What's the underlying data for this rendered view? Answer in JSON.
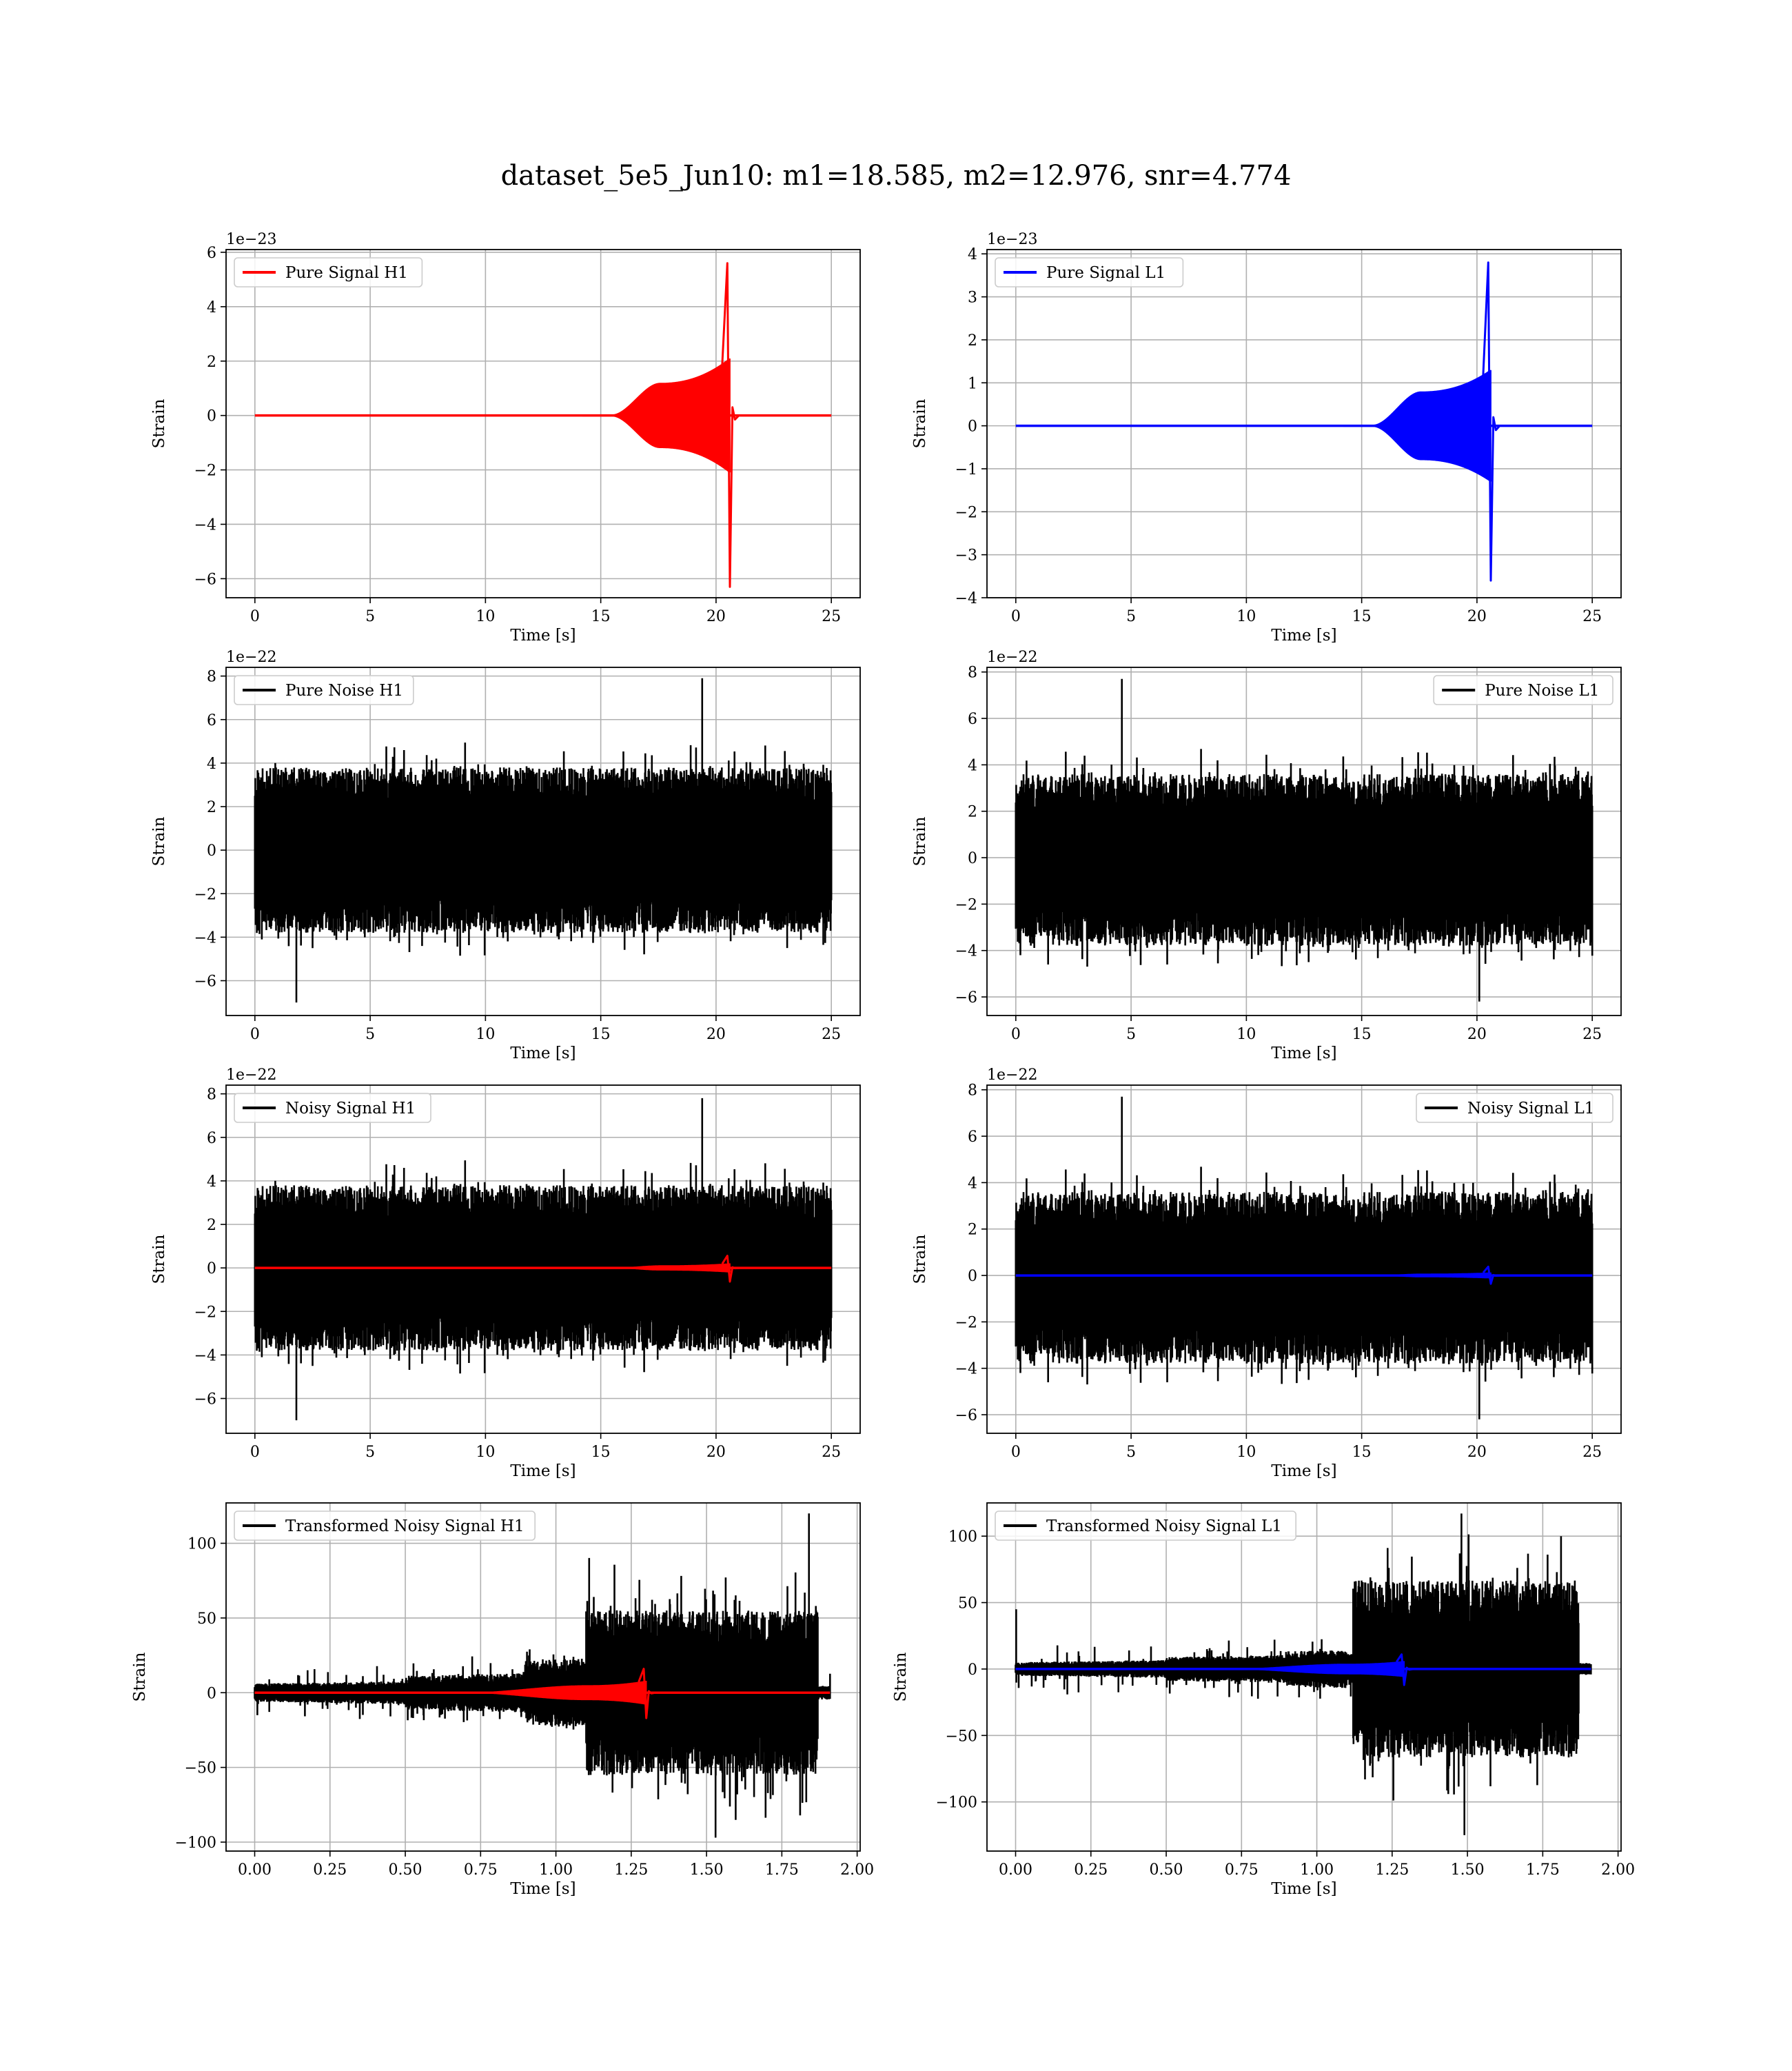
{
  "figure": {
    "title": "dataset_5e5_Jun10: m1=18.585, m2=12.976, snr=4.774",
    "colors": {
      "H1": "#ff0000",
      "L1": "#0000ff",
      "noise": "#000000",
      "grid": "#b0b0b0"
    }
  },
  "chart_data": [
    {
      "type": "line",
      "panel": "pure-signal-h1",
      "legend": [
        "Pure Signal H1"
      ],
      "legend_loc": "upper-left",
      "xlabel": "Time [s]",
      "ylabel": "Strain",
      "offset": "1e−23",
      "xlim": [
        -1.25,
        26.25
      ],
      "ylim": [
        -6.7,
        6.1
      ],
      "xticks": [
        0,
        5,
        10,
        15,
        20,
        25
      ],
      "xtick_labels": [
        "0",
        "5",
        "10",
        "15",
        "20",
        "25"
      ],
      "yticks": [
        -6,
        -4,
        -2,
        0,
        2,
        4,
        6
      ],
      "ytick_labels": [
        "−6",
        "−4",
        "−2",
        "0",
        "2",
        "4",
        "6"
      ],
      "grid": true,
      "series": [
        {
          "kind": "chirp",
          "color": "#ff0000",
          "x_start": 0,
          "x_end": 25,
          "t_onset": 15.5,
          "t_plateau": 17.6,
          "t_merge": 20.6,
          "plateau": 1.2,
          "env_end": 2.1,
          "peak_high": 5.6,
          "peak_low": -6.3,
          "ring": 0.3
        }
      ]
    },
    {
      "type": "line",
      "panel": "pure-signal-l1",
      "legend": [
        "Pure Signal L1"
      ],
      "legend_loc": "upper-left",
      "xlabel": "Time [s]",
      "ylabel": "Strain",
      "offset": "1e−23",
      "xlim": [
        -1.25,
        26.25
      ],
      "ylim": [
        -4.0,
        4.1
      ],
      "xticks": [
        0,
        5,
        10,
        15,
        20,
        25
      ],
      "xtick_labels": [
        "0",
        "5",
        "10",
        "15",
        "20",
        "25"
      ],
      "yticks": [
        -4,
        -3,
        -2,
        -1,
        0,
        1,
        2,
        3,
        4
      ],
      "ytick_labels": [
        "−4",
        "−3",
        "−2",
        "−1",
        "0",
        "1",
        "2",
        "3",
        "4"
      ],
      "grid": true,
      "series": [
        {
          "kind": "chirp",
          "color": "#0000ff",
          "x_start": 0,
          "x_end": 25,
          "t_onset": 15.5,
          "t_plateau": 17.6,
          "t_merge": 20.6,
          "plateau": 0.8,
          "env_end": 1.3,
          "peak_high": 3.8,
          "peak_low": -3.6,
          "ring": 0.2
        }
      ]
    },
    {
      "type": "line",
      "panel": "pure-noise-h1",
      "legend": [
        "Pure Noise H1"
      ],
      "legend_loc": "upper-left",
      "xlabel": "Time [s]",
      "ylabel": "Strain",
      "offset": "1e−22",
      "xlim": [
        -1.25,
        26.25
      ],
      "ylim": [
        -7.6,
        8.4
      ],
      "xticks": [
        0,
        5,
        10,
        15,
        20,
        25
      ],
      "xtick_labels": [
        "0",
        "5",
        "10",
        "15",
        "20",
        "25"
      ],
      "yticks": [
        -6,
        -4,
        -2,
        0,
        2,
        4,
        6,
        8
      ],
      "ytick_labels": [
        "−6",
        "−4",
        "−2",
        "0",
        "2",
        "4",
        "6",
        "8"
      ],
      "grid": true,
      "series": [
        {
          "kind": "noise",
          "color": "#000000",
          "x_start": 0,
          "x_end": 25,
          "amp_low": -3.8,
          "amp_high": 3.8,
          "jitter": 1.3,
          "peak_max": 7.9,
          "peak_max_t": 19.4,
          "peak_min": -7.0,
          "peak_min_t": 1.8,
          "seed": 11
        }
      ]
    },
    {
      "type": "line",
      "panel": "pure-noise-l1",
      "legend": [
        "Pure Noise L1"
      ],
      "legend_loc": "upper-right",
      "xlabel": "Time [s]",
      "ylabel": "Strain",
      "offset": "1e−22",
      "xlim": [
        -1.25,
        26.25
      ],
      "ylim": [
        -6.8,
        8.2
      ],
      "xticks": [
        0,
        5,
        10,
        15,
        20,
        25
      ],
      "xtick_labels": [
        "0",
        "5",
        "10",
        "15",
        "20",
        "25"
      ],
      "yticks": [
        -6,
        -4,
        -2,
        0,
        2,
        4,
        6,
        8
      ],
      "ytick_labels": [
        "−6",
        "−4",
        "−2",
        "0",
        "2",
        "4",
        "6",
        "8"
      ],
      "grid": true,
      "series": [
        {
          "kind": "noise",
          "color": "#000000",
          "x_start": 0,
          "x_end": 25,
          "amp_low": -3.8,
          "amp_high": 3.6,
          "jitter": 1.2,
          "peak_max": 7.7,
          "peak_max_t": 4.6,
          "peak_min": -6.2,
          "peak_min_t": 20.1,
          "seed": 23
        }
      ]
    },
    {
      "type": "line",
      "panel": "noisy-signal-h1",
      "legend": [
        "Noisy Signal H1"
      ],
      "legend_loc": "upper-left",
      "xlabel": "Time [s]",
      "ylabel": "Strain",
      "offset": "1e−22",
      "xlim": [
        -1.25,
        26.25
      ],
      "ylim": [
        -7.6,
        8.4
      ],
      "xticks": [
        0,
        5,
        10,
        15,
        20,
        25
      ],
      "xtick_labels": [
        "0",
        "5",
        "10",
        "15",
        "20",
        "25"
      ],
      "yticks": [
        -6,
        -4,
        -2,
        0,
        2,
        4,
        6,
        8
      ],
      "ytick_labels": [
        "−6",
        "−4",
        "−2",
        "0",
        "2",
        "4",
        "6",
        "8"
      ],
      "grid": true,
      "series": [
        {
          "kind": "noise",
          "color": "#000000",
          "x_start": 0,
          "x_end": 25,
          "amp_low": -3.8,
          "amp_high": 3.8,
          "jitter": 1.3,
          "peak_max": 7.8,
          "peak_max_t": 19.4,
          "peak_min": -7.0,
          "peak_min_t": 1.8,
          "seed": 11
        },
        {
          "kind": "chirp",
          "color": "#ff0000",
          "x_start": 0,
          "x_end": 25,
          "t_onset": 15.5,
          "t_plateau": 17.6,
          "t_merge": 20.6,
          "plateau": 0.12,
          "env_end": 0.21,
          "peak_high": 0.56,
          "peak_low": -0.63,
          "ring": 0.03
        }
      ]
    },
    {
      "type": "line",
      "panel": "noisy-signal-l1",
      "legend": [
        "Noisy Signal L1"
      ],
      "legend_loc": "upper-right",
      "xlabel": "Time [s]",
      "ylabel": "Strain",
      "offset": "1e−22",
      "xlim": [
        -1.25,
        26.25
      ],
      "ylim": [
        -6.8,
        8.2
      ],
      "xticks": [
        0,
        5,
        10,
        15,
        20,
        25
      ],
      "xtick_labels": [
        "0",
        "5",
        "10",
        "15",
        "20",
        "25"
      ],
      "yticks": [
        -6,
        -4,
        -2,
        0,
        2,
        4,
        6,
        8
      ],
      "ytick_labels": [
        "−6",
        "−4",
        "−2",
        "0",
        "2",
        "4",
        "6",
        "8"
      ],
      "grid": true,
      "series": [
        {
          "kind": "noise",
          "color": "#000000",
          "x_start": 0,
          "x_end": 25,
          "amp_low": -3.8,
          "amp_high": 3.6,
          "jitter": 1.2,
          "peak_max": 7.7,
          "peak_max_t": 4.6,
          "peak_min": -6.2,
          "peak_min_t": 20.1,
          "seed": 23
        },
        {
          "kind": "chirp",
          "color": "#0000ff",
          "x_start": 0,
          "x_end": 25,
          "t_onset": 15.5,
          "t_plateau": 17.6,
          "t_merge": 20.6,
          "plateau": 0.08,
          "env_end": 0.13,
          "peak_high": 0.38,
          "peak_low": -0.36,
          "ring": 0.02
        }
      ]
    },
    {
      "type": "line",
      "panel": "transformed-noisy-signal-h1",
      "legend": [
        "Transformed Noisy Signal H1"
      ],
      "legend_loc": "upper-left",
      "xlabel": "Time [s]",
      "ylabel": "Strain",
      "offset": "",
      "xlim": [
        -0.095,
        2.01
      ],
      "ylim": [
        -106,
        127
      ],
      "xticks": [
        0,
        0.25,
        0.5,
        0.75,
        1.0,
        1.25,
        1.5,
        1.75,
        2.0
      ],
      "xtick_labels": [
        "0.00",
        "0.25",
        "0.50",
        "0.75",
        "1.00",
        "1.25",
        "1.50",
        "1.75",
        "2.00"
      ],
      "yticks": [
        -100,
        -50,
        0,
        50,
        100
      ],
      "ytick_labels": [
        "−100",
        "−50",
        "0",
        "50",
        "100"
      ],
      "grid": true,
      "series": [
        {
          "kind": "transformed",
          "color": "#000000",
          "x_start": 0,
          "x_end": 1.91,
          "segments": [
            [
              0,
              0.5,
              7
            ],
            [
              0.5,
              0.9,
              10
            ],
            [
              0.9,
              1.1,
              16
            ],
            [
              1.1,
              1.87,
              48
            ],
            [
              1.87,
              1.91,
              4
            ]
          ],
          "jitter": 12,
          "peak_max": 120,
          "peak_max_t": 1.84,
          "peak_min": -97,
          "peak_min_t": 1.53,
          "seed": 37
        },
        {
          "kind": "chirp",
          "color": "#ff0000",
          "x_start": 0,
          "x_end": 1.91,
          "t_onset": 0.7,
          "t_plateau": 1.1,
          "t_merge": 1.3,
          "plateau": 5,
          "env_end": 8,
          "peak_high": 16,
          "peak_low": -17,
          "ring": 1
        }
      ]
    },
    {
      "type": "line",
      "panel": "transformed-noisy-signal-l1",
      "legend": [
        "Transformed Noisy Signal L1"
      ],
      "legend_loc": "upper-left",
      "xlabel": "Time [s]",
      "ylabel": "Strain",
      "offset": "",
      "xlim": [
        -0.095,
        2.01
      ],
      "ylim": [
        -137,
        125
      ],
      "xticks": [
        0,
        0.25,
        0.5,
        0.75,
        1.0,
        1.25,
        1.5,
        1.75,
        2.0
      ],
      "xtick_labels": [
        "0.00",
        "0.25",
        "0.50",
        "0.75",
        "1.00",
        "1.25",
        "1.50",
        "1.75",
        "2.00"
      ],
      "yticks": [
        -100,
        -50,
        0,
        50,
        100
      ],
      "ytick_labels": [
        "−100",
        "−50",
        "0",
        "50",
        "100"
      ],
      "grid": true,
      "series": [
        {
          "kind": "transformed",
          "color": "#000000",
          "x_start": 0,
          "x_end": 1.91,
          "segments": [
            [
              0,
              0.5,
              6
            ],
            [
              0.5,
              0.9,
              8
            ],
            [
              0.9,
              1.12,
              10
            ],
            [
              1.12,
              1.87,
              58
            ],
            [
              1.87,
              1.91,
              4
            ]
          ],
          "jitter": 14,
          "peak_max": 117,
          "peak_max_t": 1.48,
          "peak_min": -125,
          "peak_min_t": 1.49,
          "spike": 45,
          "spike_t": 0.002,
          "seed": 53
        },
        {
          "kind": "chirp",
          "color": "#0000ff",
          "x_start": 0,
          "x_end": 1.91,
          "t_onset": 0.7,
          "t_plateau": 1.1,
          "t_merge": 1.29,
          "plateau": 4,
          "env_end": 6,
          "peak_high": 11,
          "peak_low": -12,
          "ring": 1
        }
      ]
    }
  ]
}
